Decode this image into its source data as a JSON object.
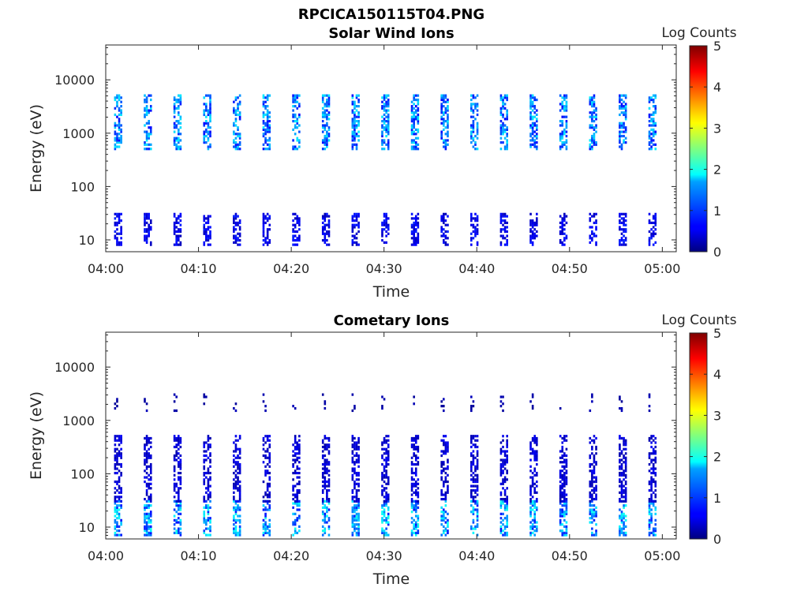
{
  "page_title": "RPCICA150115T04.PNG",
  "chart_data": [
    {
      "type": "heatmap",
      "title": "Solar Wind Ions",
      "xlabel": "Time",
      "ylabel": "Energy (eV)",
      "x_ticks": [
        "04:00",
        "04:10",
        "04:20",
        "04:30",
        "04:40",
        "04:50",
        "05:00"
      ],
      "x_range_minutes": [
        0,
        61.5
      ],
      "y_scale": "log",
      "y_range": [
        6,
        45000
      ],
      "y_ticks": [
        "10",
        "100",
        "1000",
        "10000"
      ],
      "y_tick_values": [
        10,
        100,
        1000,
        10000
      ],
      "colorbar": {
        "label": "Log Counts",
        "range": [
          0,
          5
        ],
        "ticks": [
          "0",
          "1",
          "2",
          "3",
          "4",
          "5"
        ]
      },
      "sweep_period_minutes": 3.2,
      "sweep_start_minutes": 0.9,
      "features": [
        {
          "name": "solar wind beam",
          "energy_range_eV": [
            500,
            5000
          ],
          "peak_log_counts": 1.8
        },
        {
          "name": "low energy population",
          "energy_range_eV": [
            8,
            30
          ],
          "peak_log_counts": 0.8
        }
      ]
    },
    {
      "type": "heatmap",
      "title": "Cometary Ions",
      "xlabel": "Time",
      "ylabel": "Energy (eV)",
      "x_ticks": [
        "04:00",
        "04:10",
        "04:20",
        "04:30",
        "04:40",
        "04:50",
        "05:00"
      ],
      "x_range_minutes": [
        0,
        61.5
      ],
      "y_scale": "log",
      "y_range": [
        6,
        45000
      ],
      "y_ticks": [
        "10",
        "100",
        "1000",
        "10000"
      ],
      "y_tick_values": [
        10,
        100,
        1000,
        10000
      ],
      "colorbar": {
        "label": "Log Counts",
        "range": [
          0,
          5
        ],
        "ticks": [
          "0",
          "1",
          "2",
          "3",
          "4",
          "5"
        ]
      },
      "sweep_period_minutes": 3.2,
      "sweep_start_minutes": 0.9,
      "features": [
        {
          "name": "cometary ions low energy",
          "energy_range_eV": [
            7,
            30
          ],
          "peak_log_counts": 2.0
        },
        {
          "name": "cometary ions extended tail",
          "energy_range_eV": [
            30,
            500
          ],
          "peak_log_counts": 0.6
        },
        {
          "name": "sparse high energy counts",
          "energy_range_eV": [
            1500,
            3000
          ],
          "peak_log_counts": 0.3
        }
      ]
    }
  ],
  "colors": {
    "jet_low": "#00007f",
    "jet_mid": "#7fff7f",
    "jet_high": "#7f0000",
    "axis": "#262626"
  }
}
